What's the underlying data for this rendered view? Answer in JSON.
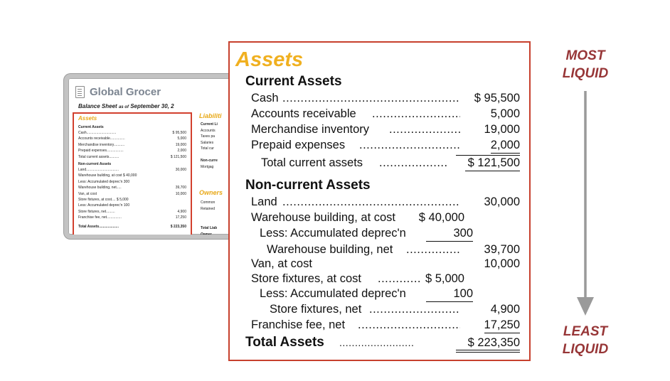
{
  "mini": {
    "company": "Global Grocer",
    "subtitle_main": "Balance Sheet",
    "subtitle_small": "as of",
    "subtitle_date": "September 30, 2",
    "assets_title": "Assets",
    "current_assets": "Current Assets",
    "lines": [
      {
        "label": "Cash..............................",
        "value": "$ 95,500"
      },
      {
        "label": "Accounts receivable...............",
        "value": "5,000"
      },
      {
        "label": "Merchandise inventory...........",
        "value": "19,000"
      },
      {
        "label": "Prepaid expenses.................",
        "value": "2,000"
      },
      {
        "label": "  Total current assets..........",
        "value": "$ 121,500"
      },
      {
        "label": "Non-current Assets",
        "value": ""
      },
      {
        "label": "Land.................................",
        "value": "30,000"
      },
      {
        "label": "Warehouse building, at cost $ 40,000",
        "value": ""
      },
      {
        "label": "  Less: Accumulated deprec'n      300",
        "value": ""
      },
      {
        "label": "    Warehouse building, net.....",
        "value": "39,700"
      },
      {
        "label": "Van, at cost",
        "value": "10,000"
      },
      {
        "label": "Store fixtures, at cost.... $ 5,000",
        "value": ""
      },
      {
        "label": "  Less: Accumulated deprec'n    100",
        "value": ""
      },
      {
        "label": "    Store fixtures, net.........",
        "value": "4,900"
      },
      {
        "label": "Franchise fee, net...............",
        "value": "17,250"
      },
      {
        "label": "Total Assets....................",
        "value": "$ 223,350"
      }
    ],
    "liabilities_title": "Liabiliti",
    "right_lines": [
      "Current Li",
      "Accounts",
      "Taxes pa",
      "Salaries",
      "Total cur",
      "",
      "Non-curre",
      "Mortgag"
    ],
    "owners_title": "Owners",
    "owners_lines": [
      "Common",
      "Retained"
    ],
    "bottom_lines": [
      "Total Liab",
      "Owner"
    ]
  },
  "panel": {
    "title": "Assets",
    "current_heading": "Current Assets",
    "noncurrent_heading": "Non-current Assets",
    "cash_label": "Cash",
    "cash_value": "$ 95,500",
    "ar_label": "Accounts receivable",
    "ar_value": "5,000",
    "inv_label": "Merchandise inventory",
    "inv_value": "19,000",
    "prepaid_label": "Prepaid expenses",
    "prepaid_value": "2,000",
    "total_current_label": "Total current assets",
    "total_current_value": "$ 121,500",
    "land_label": "Land",
    "land_value": "30,000",
    "wh_cost_label": "Warehouse building, at cost",
    "wh_cost_value": "$ 40,000",
    "wh_dep_label": "Less: Accumulated deprec'n",
    "wh_dep_value": "300",
    "wh_net_label": "Warehouse building, net",
    "wh_net_value": "39,700",
    "van_label": "Van, at cost",
    "van_value": "10,000",
    "sf_cost_label": "Store fixtures, at cost",
    "sf_cost_value": "$ 5,000",
    "sf_dep_label": "Less: Accumulated deprec'n",
    "sf_dep_value": "100",
    "sf_net_label": "Store fixtures, net",
    "sf_net_value": "4,900",
    "franchise_label": "Franchise fee, net",
    "franchise_value": "17,250",
    "total_label": "Total Assets",
    "total_value": "$ 223,350"
  },
  "liquidity": {
    "most_line1": "MOST",
    "most_line2": "LIQUID",
    "least_line1": "LEAST",
    "least_line2": "LIQUID",
    "label_color": "#973637",
    "arrow_color": "#9a9a9a"
  },
  "colors": {
    "panel_border": "#c7402d",
    "assets_title": "#f0b020"
  }
}
